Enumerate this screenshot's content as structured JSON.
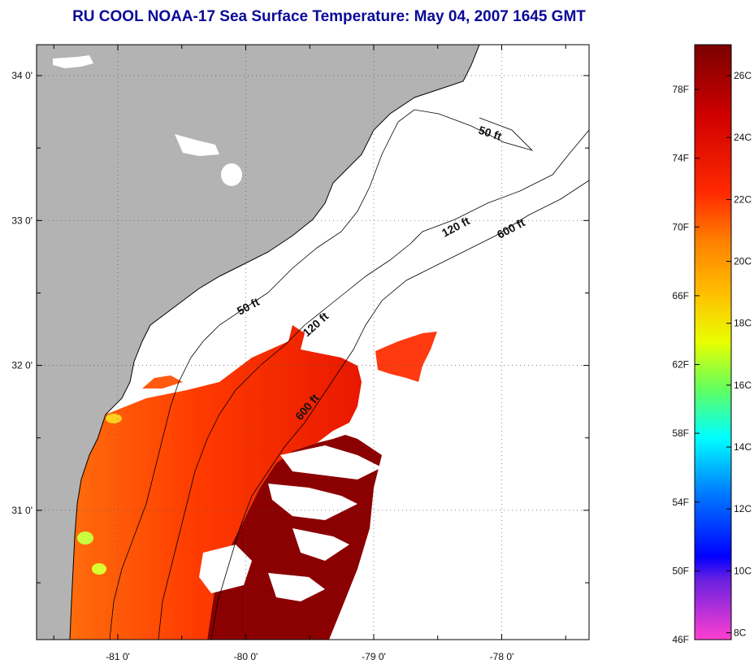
{
  "title": "RU COOL  NOAA-17  Sea Surface Temperature:  May 04, 2007 1645 GMT",
  "map": {
    "latitudes": [
      {
        "label": "34 0'",
        "lat": 34.0
      },
      {
        "label": "33 0'",
        "lat": 33.0
      },
      {
        "label": "32 0'",
        "lat": 32.0
      },
      {
        "label": "31 0'",
        "lat": 31.0
      }
    ],
    "longitudes": [
      {
        "label": "-81 0'",
        "lon": -81.0
      },
      {
        "label": "-80 0'",
        "lon": -80.0
      },
      {
        "label": "-79 0'",
        "lon": -79.0
      },
      {
        "label": "-78 0'",
        "lon": -78.0
      }
    ],
    "isobath_labels": [
      "50 ft",
      "50 ft",
      "120 ft",
      "120 ft",
      "600 ft",
      "600 ft"
    ],
    "colors": {
      "land": "#b3b3b3",
      "ocean_nodata": "#ffffff",
      "sst_warm": "#ff3300",
      "sst_hot": "#8b0000"
    }
  },
  "colorbar": {
    "fahrenheit": [
      "78F",
      "74F",
      "70F",
      "66F",
      "62F",
      "58F",
      "54F",
      "50F",
      "46F"
    ],
    "celsius": [
      "26C",
      "24C",
      "22C",
      "20C",
      "18C",
      "16C",
      "14C",
      "12C",
      "10C",
      "8C"
    ]
  }
}
